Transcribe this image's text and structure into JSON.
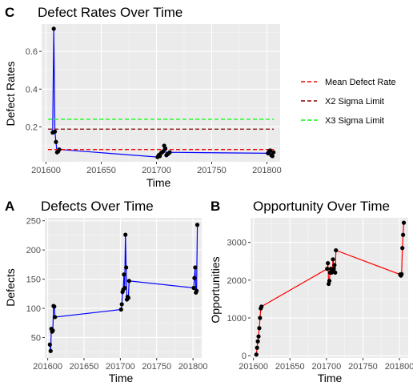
{
  "figure": {
    "colors": {
      "panel": "#ebebeb",
      "point": "#000000"
    }
  },
  "chart_data": [
    {
      "id": "C",
      "panel_label": "C",
      "type": "line",
      "title": "Defect Rates Over Time",
      "xlabel": "Time",
      "ylabel": "Defect Rates",
      "xlim": [
        201596,
        201812
      ],
      "ylim": [
        0.015,
        0.745
      ],
      "xticks": [
        201600,
        201650,
        201700,
        201750,
        201800
      ],
      "xtick_labels": [
        "201600",
        "201650",
        "201700",
        "201750",
        "201800"
      ],
      "yticks": [
        0.2,
        0.4,
        0.6
      ],
      "ytick_labels": [
        "0.2",
        "0.4",
        "0.6"
      ],
      "grid": true,
      "line_color": "#0000ff",
      "series": [
        {
          "x": [
            201606,
            201607,
            201608,
            201609,
            201610,
            201611,
            201612,
            201701,
            201702,
            201703,
            201704,
            201705,
            201706,
            201707,
            201708,
            201709,
            201710,
            201711,
            201712,
            201801,
            201802,
            201803,
            201804,
            201805,
            201806
          ],
          "y": [
            0.17,
            0.72,
            0.175,
            0.12,
            0.065,
            0.07,
            0.08,
            0.04,
            0.05,
            0.045,
            0.06,
            0.065,
            0.07,
            0.1,
            0.085,
            0.05,
            0.055,
            0.06,
            0.065,
            0.06,
            0.07,
            0.075,
            0.05,
            0.045,
            0.065
          ]
        }
      ],
      "reference_lines": [
        {
          "name": "Mean Defect Rate",
          "y": 0.08,
          "color": "#ff0000"
        },
        {
          "name": "X2 Sigma Limit",
          "y": 0.188,
          "color": "#8b0000"
        },
        {
          "name": "X3 Sigma Limit",
          "y": 0.24,
          "color": "#00ff00"
        }
      ],
      "legend": {
        "placement": "right",
        "entries": [
          "Mean Defect Rate",
          "X2 Sigma Limit",
          "X3 Sigma Limit"
        ]
      }
    },
    {
      "id": "A",
      "panel_label": "A",
      "type": "line",
      "title": "Defects Over Time",
      "xlabel": "Time",
      "ylabel": "Defects",
      "xlim": [
        201596,
        201812
      ],
      "ylim": [
        15,
        255
      ],
      "xticks": [
        201600,
        201650,
        201700,
        201750,
        201800
      ],
      "xtick_labels": [
        "201600",
        "201650",
        "201700",
        "201750",
        "201800"
      ],
      "yticks": [
        50,
        100,
        150,
        200,
        250
      ],
      "ytick_labels": [
        "50",
        "100",
        "150",
        "200",
        "250"
      ],
      "grid": true,
      "line_color": "#0000ff",
      "series": [
        {
          "x": [
            201603,
            201604,
            201605,
            201606,
            201607,
            201608,
            201609,
            201610,
            201701,
            201702,
            201703,
            201704,
            201705,
            201706,
            201707,
            201708,
            201709,
            201710,
            201711,
            201712,
            201801,
            201802,
            201803,
            201804,
            201805,
            201806
          ],
          "y": [
            38,
            27,
            65,
            60,
            62,
            104,
            103,
            85,
            98,
            107,
            128,
            132,
            158,
            135,
            226,
            170,
            115,
            120,
            118,
            147,
            135,
            152,
            170,
            127,
            130,
            243
          ]
        }
      ]
    },
    {
      "id": "B",
      "panel_label": "B",
      "type": "line",
      "title": "Opportunity Over Time",
      "xlabel": "Time",
      "ylabel": "Opportunities",
      "xlim": [
        201596,
        201812
      ],
      "ylim": [
        -60,
        3650
      ],
      "xticks": [
        201600,
        201650,
        201700,
        201750,
        201800
      ],
      "xtick_labels": [
        "201600",
        "201650",
        "201700",
        "201750",
        "201800"
      ],
      "yticks": [
        0,
        1000,
        2000,
        3000
      ],
      "ytick_labels": [
        "0",
        "1000",
        "2000",
        "3000"
      ],
      "grid": true,
      "line_color": "#ff0000",
      "series": [
        {
          "x": [
            201604,
            201605,
            201606,
            201607,
            201608,
            201609,
            201610,
            201611,
            201701,
            201702,
            201703,
            201704,
            201705,
            201706,
            201707,
            201708,
            201709,
            201710,
            201711,
            201712,
            201713,
            201801,
            201802,
            201803,
            201804,
            201805,
            201806
          ],
          "y": [
            30,
            210,
            380,
            510,
            730,
            1000,
            1250,
            1300,
            2300,
            2450,
            1900,
            1980,
            2200,
            2300,
            2200,
            2250,
            2550,
            2300,
            2400,
            2200,
            2790,
            2150,
            2120,
            2160,
            2850,
            3200,
            3520
          ]
        }
      ]
    }
  ]
}
